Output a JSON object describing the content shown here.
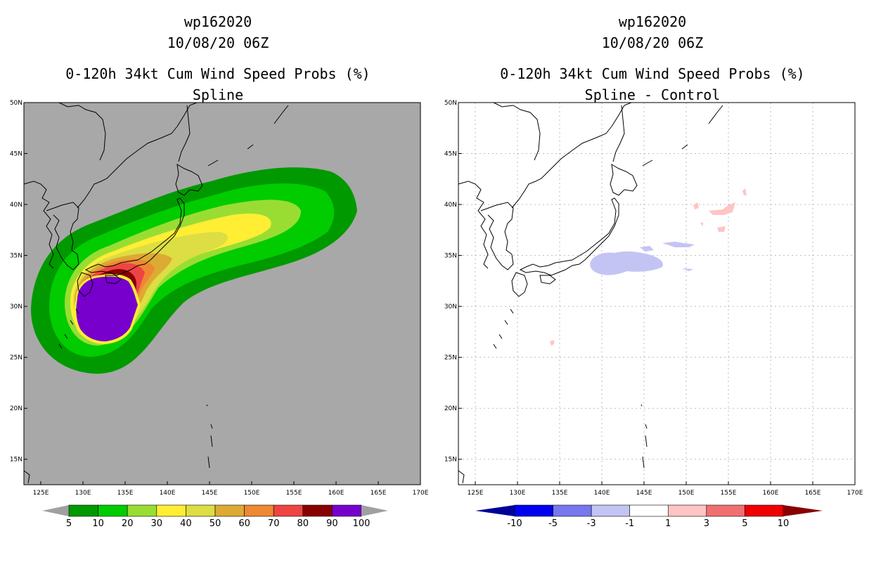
{
  "panels": [
    {
      "storm_id": "wp162020",
      "datetime": "10/08/20 06Z",
      "product": "0-120h 34kt Cum Wind Speed Probs (%)",
      "subtitle": "Spline",
      "colorbar": {
        "labels": [
          "5",
          "10",
          "20",
          "30",
          "40",
          "50",
          "60",
          "70",
          "80",
          "90",
          "100"
        ],
        "colors": [
          "#009900",
          "#00cc00",
          "#99dd33",
          "#ffee33",
          "#dddd44",
          "#ddaa33",
          "#ee8833",
          "#ee4444",
          "#880000",
          "#7700cc"
        ],
        "under_color": "#a0a0a0",
        "over_color": "#a0a0a0"
      }
    },
    {
      "storm_id": "wp162020",
      "datetime": "10/08/20 06Z",
      "product": "0-120h 34kt Cum Wind Speed Probs (%)",
      "subtitle": "Spline - Control",
      "colorbar": {
        "labels": [
          "-10",
          "-5",
          "-3",
          "-1",
          "1",
          "3",
          "5",
          "10"
        ],
        "colors": [
          "#0000ee",
          "#7777ee",
          "#c4c4f4",
          "#ffffff",
          "#ffc4c4",
          "#f07070",
          "#ee0000"
        ],
        "under_color": "#000099",
        "over_color": "#880000"
      }
    }
  ],
  "map": {
    "lat_labels": [
      "50N",
      "45N",
      "40N",
      "35N",
      "30N",
      "25N",
      "20N",
      "15N"
    ],
    "lon_labels": [
      "125E",
      "130E",
      "135E",
      "140E",
      "145E",
      "150E",
      "155E",
      "160E",
      "165E",
      "170E"
    ],
    "ocean_color_left": "#a8a8a8"
  }
}
